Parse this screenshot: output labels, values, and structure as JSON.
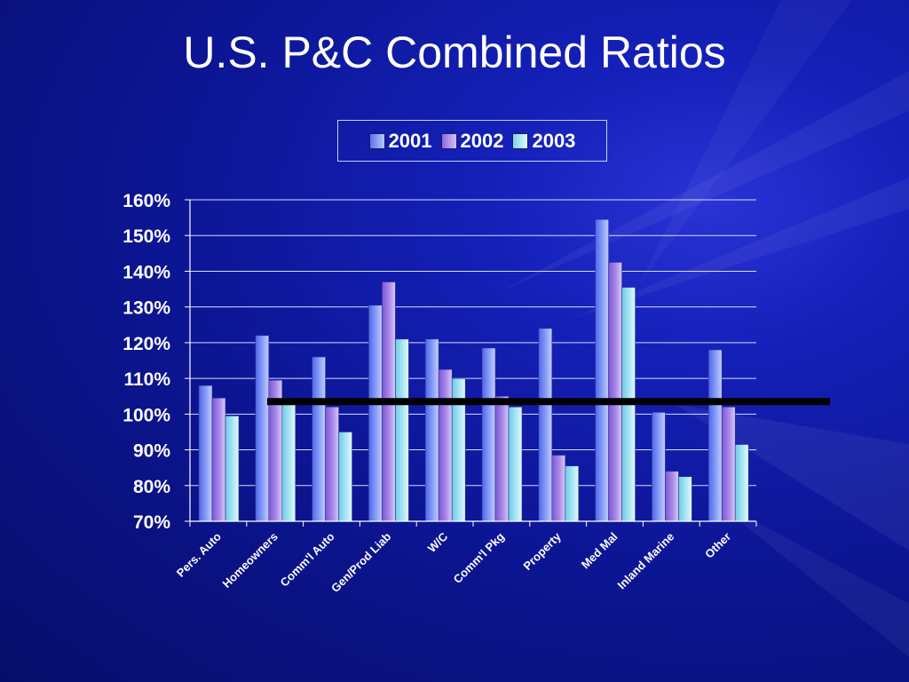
{
  "title": "U.S. P&C Combined Ratios",
  "colors": {
    "series_2001": "#6f86f4",
    "series_2002": "#9a7be3",
    "series_2003": "#8fdbee",
    "reference_line": "#000000"
  },
  "chart_data": {
    "type": "bar",
    "title": "U.S. P&C Combined Ratios",
    "xlabel": "",
    "ylabel": "",
    "categories": [
      "Pers. Auto",
      "Homeowners",
      "Comm'l Auto",
      "Gen/Prod Liab",
      "W/C",
      "Comm'l Pkg",
      "Property",
      "Med Mal",
      "Inland Marine",
      "Other"
    ],
    "series": [
      {
        "name": "2001",
        "values": [
          108,
          122,
          116,
          130.5,
          121,
          118.5,
          124,
          154.5,
          100.5,
          118
        ]
      },
      {
        "name": "2002",
        "values": [
          104.5,
          109.5,
          102,
          137,
          112.5,
          105,
          88.5,
          142.5,
          84,
          102
        ]
      },
      {
        "name": "2003",
        "values": [
          99.5,
          103,
          95,
          121,
          110,
          102,
          85.5,
          135.5,
          82.5,
          91.5
        ]
      }
    ],
    "ylim": [
      70,
      160
    ],
    "yticks": [
      70,
      80,
      90,
      100,
      110,
      120,
      130,
      140,
      150,
      160
    ],
    "ytick_labels": [
      "70%",
      "80%",
      "90%",
      "100%",
      "110%",
      "120%",
      "130%",
      "140%",
      "150%",
      "160%"
    ],
    "grid": true,
    "legend": "top-center",
    "reference_line": {
      "y": 103.5
    }
  }
}
